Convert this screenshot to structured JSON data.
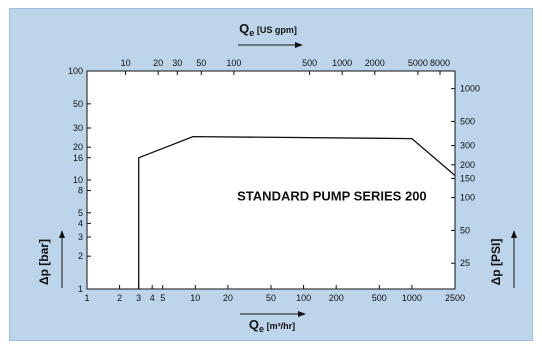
{
  "chart_data": {
    "type": "line",
    "annotation": "STANDARD PUMP SERIES 200",
    "x_bottom": {
      "label_main": "Q",
      "label_sub": "e",
      "label_unit": "[m³/hr]",
      "scale": "log",
      "range": [
        1,
        2500
      ],
      "ticks": [
        {
          "v": 1,
          "t": "1"
        },
        {
          "v": 2,
          "t": "2"
        },
        {
          "v": 3,
          "t": "3"
        },
        {
          "v": 4,
          "t": "4"
        },
        {
          "v": 5,
          "t": "5"
        },
        {
          "v": 10,
          "t": "10"
        },
        {
          "v": 20,
          "t": "20"
        },
        {
          "v": 50,
          "t": "50"
        },
        {
          "v": 100,
          "t": "100"
        },
        {
          "v": 200,
          "t": "200"
        },
        {
          "v": 500,
          "t": "500"
        },
        {
          "v": 1000,
          "t": "1000"
        },
        {
          "v": 2500,
          "t": "2500"
        }
      ]
    },
    "x_top": {
      "label_main": "Q",
      "label_sub": "e",
      "label_unit": "[US gpm]",
      "scale": "log",
      "ticks": [
        {
          "v": 10,
          "t": "10"
        },
        {
          "v": 20,
          "t": "20"
        },
        {
          "v": 30,
          "t": "30"
        },
        {
          "v": 50,
          "t": "50"
        },
        {
          "v": 100,
          "t": "100"
        },
        {
          "v": 500,
          "t": "500"
        },
        {
          "v": 1000,
          "t": "1000"
        },
        {
          "v": 2000,
          "t": "2000"
        },
        {
          "v": 5000,
          "t": "5000"
        },
        {
          "v": 8000,
          "t": "8000"
        }
      ]
    },
    "y_left": {
      "label": "Δp [bar]",
      "scale": "log",
      "range": [
        1,
        100
      ],
      "ticks": [
        {
          "v": 1,
          "t": "1"
        },
        {
          "v": 2,
          "t": "2"
        },
        {
          "v": 3,
          "t": "3"
        },
        {
          "v": 4,
          "t": "4"
        },
        {
          "v": 5,
          "t": "5"
        },
        {
          "v": 8,
          "t": "8"
        },
        {
          "v": 10,
          "t": "10"
        },
        {
          "v": 16,
          "t": "16"
        },
        {
          "v": 20,
          "t": "20"
        },
        {
          "v": 30,
          "t": "30"
        },
        {
          "v": 50,
          "t": "50"
        },
        {
          "v": 100,
          "t": "100"
        }
      ]
    },
    "y_right": {
      "label": "Δp [PSI]",
      "scale": "log",
      "ticks": [
        {
          "v": 25,
          "t": "25"
        },
        {
          "v": 50,
          "t": "50"
        },
        {
          "v": 100,
          "t": "100"
        },
        {
          "v": 150,
          "t": "150"
        },
        {
          "v": 200,
          "t": "200"
        },
        {
          "v": 300,
          "t": "300"
        },
        {
          "v": 500,
          "t": "500"
        },
        {
          "v": 1000,
          "t": "1000"
        }
      ]
    },
    "series": [
      {
        "x": [
          3,
          3,
          9.5,
          1000,
          2500
        ],
        "y": [
          1,
          16,
          25,
          24,
          11
        ]
      }
    ],
    "grid": false
  }
}
